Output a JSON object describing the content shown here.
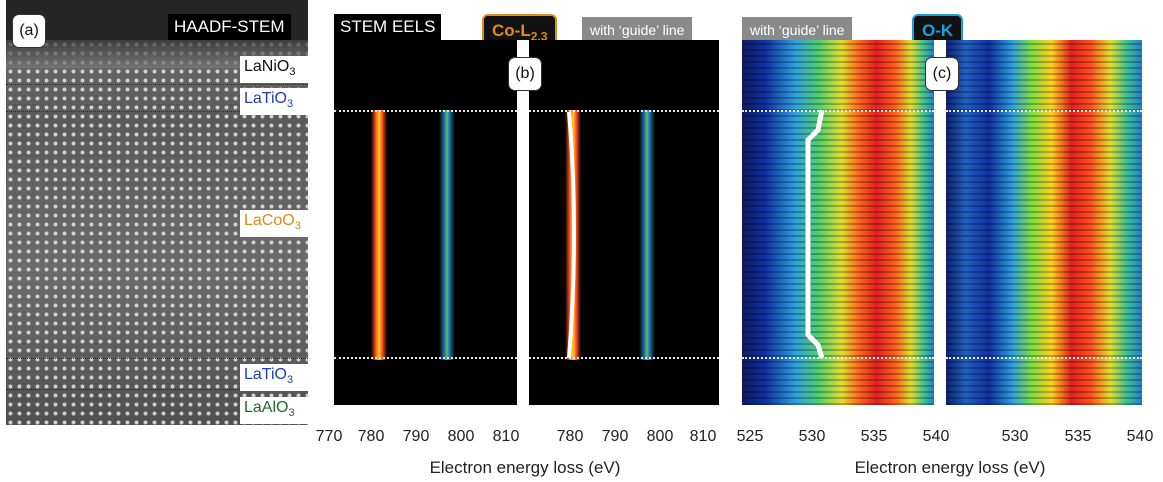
{
  "panel_a": {
    "letter": "(a)",
    "title": "HAADF-STEM",
    "layers": [
      {
        "text": "LaNiO",
        "sub": "3",
        "color": "#111111"
      },
      {
        "text": "LaTiO",
        "sub": "3",
        "color": "#1f3fb0"
      },
      {
        "text": "LaCoO",
        "sub": "3",
        "color": "#e08a1a"
      },
      {
        "text": "LaTiO",
        "sub": "3",
        "color": "#1f3fb0"
      },
      {
        "text": "LaAlO",
        "sub": "3",
        "color": "#1e6b2a"
      }
    ]
  },
  "panel_b": {
    "letter": "(b)",
    "title": "STEM EELS",
    "edge_label": "Co-L",
    "edge_sub": "2,3",
    "guide_label": "with ‘guide’ line",
    "ticks_left": [
      "770",
      "780",
      "790",
      "800",
      "810"
    ],
    "ticks_right": [
      "780",
      "790",
      "800",
      "810"
    ],
    "xlabel": "Electron energy loss (eV)"
  },
  "panel_c": {
    "letter": "(c)",
    "guide_label": "with ‘guide’ line",
    "edge_label": "O-K",
    "ticks_left": [
      "525",
      "530",
      "535",
      "540"
    ],
    "ticks_right": [
      "530",
      "535",
      "540"
    ],
    "xlabel": "Electron energy loss (eV)"
  },
  "colors": {
    "co_edge_border": "#e08a1a",
    "ok_edge_border": "#1aa0d8",
    "edge_bg": "#111111",
    "guide_gray": "#8a8a8a"
  }
}
